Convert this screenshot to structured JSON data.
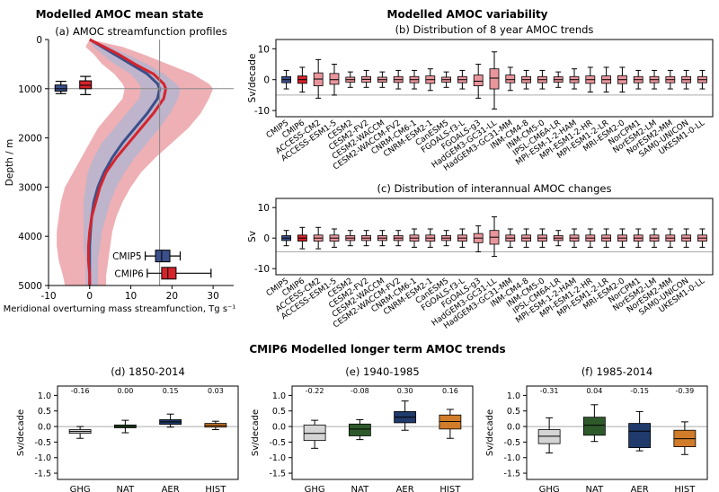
{
  "titles": {
    "left": "Modelled AMOC mean state",
    "right": "Modelled AMOC variability",
    "bottom": "CMIP6 Modelled longer term AMOC trends"
  },
  "colors": {
    "cmip5": "#3b4f8a",
    "cmip6": "#d4242c",
    "pink": "#e8969c",
    "gray": "#cfcfcf",
    "green": "#2e5a2b",
    "navy": "#1f3a6b",
    "orange": "#d07c2a"
  },
  "chart_data": [
    {
      "id": "a",
      "type": "line",
      "title": "(a) AMOC streamfunction profiles",
      "xlabel": "Meridional overturning mass streamfunction, Tg s⁻¹",
      "ylabel": "Depth / m",
      "xlim": [
        -10,
        35
      ],
      "ylim": [
        5000,
        0
      ],
      "xticks": [
        -10,
        0,
        10,
        20,
        30
      ],
      "yticks": [
        0,
        1000,
        2000,
        3000,
        4000,
        5000
      ],
      "reference_lines": {
        "x": 17,
        "y": 1000
      },
      "depth": [
        0,
        150,
        300,
        500,
        700,
        900,
        1000,
        1200,
        1500,
        1800,
        2100,
        2400,
        2700,
        3000,
        3300,
        3600,
        3900,
        4200,
        4500,
        4800,
        5000
      ],
      "series": [
        {
          "name": "CMIP5",
          "mean": [
            0,
            3,
            6,
            10,
            14,
            16.5,
            17,
            16.5,
            14,
            11,
            8,
            5.5,
            3.5,
            2,
            1,
            0.5,
            0.2,
            0,
            0,
            0,
            0
          ],
          "lower": [
            0,
            1,
            3,
            6,
            10,
            12,
            12.5,
            12,
            9,
            6,
            3,
            1,
            -0.5,
            -1,
            -1.5,
            -1.5,
            -1.5,
            -1.5,
            -1,
            -1,
            -1
          ],
          "upper": [
            0,
            5,
            9,
            14,
            18,
            21,
            22,
            21.5,
            19.5,
            17,
            14,
            11,
            8.5,
            6.5,
            5,
            4,
            3,
            2.5,
            2,
            2,
            2
          ]
        },
        {
          "name": "CMIP6",
          "mean": [
            0,
            3.5,
            7,
            11,
            15.5,
            18,
            18.5,
            18,
            15.5,
            12.5,
            9.5,
            6.5,
            4,
            2.5,
            1.5,
            0.5,
            0,
            -0.3,
            -0.3,
            0,
            0
          ],
          "lower": [
            0,
            -1,
            1,
            3,
            6,
            8,
            8.5,
            8,
            5,
            2,
            0,
            -2,
            -4,
            -6,
            -7,
            -7.5,
            -8,
            -8,
            -7.5,
            -6.5,
            -6
          ],
          "upper": [
            0,
            8,
            13,
            19,
            25,
            29,
            30,
            29,
            27,
            24,
            20,
            16,
            12.5,
            10,
            8,
            6.5,
            5.5,
            5,
            4.5,
            4,
            4
          ]
        }
      ],
      "boxes": [
        {
          "name": "CMIP5",
          "axis": "x",
          "position": 4400,
          "whisker": [
            13.5,
            22
          ],
          "q": [
            16,
            19.5
          ],
          "median": 17.5
        },
        {
          "name": "CMIP6",
          "axis": "x",
          "position": 4750,
          "whisker": [
            14,
            29.5
          ],
          "q": [
            17.5,
            21
          ],
          "median": 19
        },
        {
          "name": "CMIP5",
          "axis": "y",
          "position": -7,
          "whisker": [
            850,
            1100
          ],
          "q": [
            925,
            1050
          ],
          "median": 1000
        },
        {
          "name": "CMIP6",
          "axis": "y",
          "position": -1,
          "whisker": [
            750,
            1120
          ],
          "q": [
            840,
            1000
          ],
          "median": 930
        }
      ]
    },
    {
      "id": "b",
      "type": "box",
      "title": "(b) Distribution of 8 year AMOC trends",
      "ylabel": "Sv/decade",
      "ylim": [
        -12,
        13
      ],
      "yticks": [
        -10,
        0,
        10
      ],
      "reference_line": -5,
      "categories": [
        "CMIP5",
        "CMIP6",
        "ACCESS-CM2",
        "ACCESS-ESM1-5",
        "CESM2",
        "CESM2-FV2",
        "CESM2-WACCM",
        "CESM2-WACCM-FV2",
        "CNRM-CM6-1",
        "CNRM-ESM2-1",
        "CanESM5",
        "FGOALS-f3-L",
        "FGOALS-g3",
        "HadGEM3-GC31-LL",
        "HadGEM3-GC31-MM",
        "INM-CM4-8",
        "INM-CM5-0",
        "IPSL-CM6A-LR",
        "MPI-ESM-1-2-HAM",
        "MPI-ESM1-2-HR",
        "MPI-ESM1-2-LR",
        "MRI-ESM2-0",
        "NorCPM1",
        "NorESM2-LM",
        "NorESM2-MM",
        "SAM0-UNICON",
        "UKESM1-0-LL"
      ],
      "boxes": [
        {
          "q1": -1,
          "median": 0,
          "q3": 1,
          "whisker": [
            -3,
            3
          ]
        },
        {
          "q1": -1.2,
          "median": 0,
          "q3": 1.2,
          "whisker": [
            -4,
            4
          ]
        },
        {
          "q1": -2,
          "median": 0.2,
          "q3": 2.2,
          "whisker": [
            -6,
            6.5
          ]
        },
        {
          "q1": -1.5,
          "median": 0,
          "q3": 2,
          "whisker": [
            -5,
            5
          ]
        },
        {
          "q1": -0.8,
          "median": 0,
          "q3": 0.8,
          "whisker": [
            -2.5,
            2.5
          ]
        },
        {
          "q1": -0.8,
          "median": 0.1,
          "q3": 1,
          "whisker": [
            -2.5,
            3
          ]
        },
        {
          "q1": -0.8,
          "median": 0,
          "q3": 0.8,
          "whisker": [
            -2.5,
            2.5
          ]
        },
        {
          "q1": -0.9,
          "median": 0,
          "q3": 1,
          "whisker": [
            -3,
            3
          ]
        },
        {
          "q1": -1,
          "median": 0,
          "q3": 1,
          "whisker": [
            -3,
            3
          ]
        },
        {
          "q1": -1.2,
          "median": 0,
          "q3": 1.2,
          "whisker": [
            -3.5,
            3.5
          ]
        },
        {
          "q1": -0.8,
          "median": 0,
          "q3": 0.8,
          "whisker": [
            -2.5,
            2.5
          ]
        },
        {
          "q1": -1,
          "median": 0,
          "q3": 1,
          "whisker": [
            -3,
            3
          ]
        },
        {
          "q1": -2,
          "median": -0.5,
          "q3": 1.5,
          "whisker": [
            -6,
            5
          ]
        },
        {
          "q1": -3,
          "median": 0.5,
          "q3": 3.5,
          "whisker": [
            -9.5,
            9
          ]
        },
        {
          "q1": -1,
          "median": 0,
          "q3": 1.5,
          "whisker": [
            -3.5,
            4
          ]
        },
        {
          "q1": -1,
          "median": 0,
          "q3": 1,
          "whisker": [
            -3,
            3
          ]
        },
        {
          "q1": -1,
          "median": 0,
          "q3": 1,
          "whisker": [
            -3,
            3
          ]
        },
        {
          "q1": -0.8,
          "median": 0,
          "q3": 0.9,
          "whisker": [
            -2.5,
            2.5
          ]
        },
        {
          "q1": -1,
          "median": 0,
          "q3": 1,
          "whisker": [
            -3,
            3.5
          ]
        },
        {
          "q1": -1.2,
          "median": 0,
          "q3": 1.2,
          "whisker": [
            -4,
            4
          ]
        },
        {
          "q1": -1.2,
          "median": 0,
          "q3": 1.2,
          "whisker": [
            -4,
            4
          ]
        },
        {
          "q1": -1.3,
          "median": 0,
          "q3": 1.3,
          "whisker": [
            -4,
            4
          ]
        },
        {
          "q1": -1,
          "median": 0,
          "q3": 1,
          "whisker": [
            -3,
            3
          ]
        },
        {
          "q1": -1,
          "median": 0,
          "q3": 1,
          "whisker": [
            -3,
            3
          ]
        },
        {
          "q1": -1,
          "median": 0,
          "q3": 1,
          "whisker": [
            -3,
            3
          ]
        },
        {
          "q1": -1,
          "median": 0,
          "q3": 1,
          "whisker": [
            -3,
            3
          ]
        },
        {
          "q1": -1,
          "median": 0,
          "q3": 1,
          "whisker": [
            -3,
            3
          ]
        }
      ]
    },
    {
      "id": "c",
      "type": "box",
      "title": "(c) Distribution of interannual AMOC changes",
      "ylabel": "Sv",
      "ylim": [
        -12,
        13
      ],
      "yticks": [
        -10,
        0,
        10
      ],
      "reference_line": -4.5,
      "categories": [
        "CMIP5",
        "CMIP6",
        "ACCESS-CM2",
        "ACCESS-ESM1-5",
        "CESM2",
        "CESM2-FV2",
        "CESM2-WACCM",
        "CESM2-WACCM-FV2",
        "CNRM-CM6-1",
        "CNRM-ESM2-1",
        "CanESM5",
        "FGOALS-f3-L",
        "FGOALS-g3",
        "HadGEM3-GC31-LL",
        "HadGEM3-GC31-MM",
        "INM-CM4-8",
        "INM-CM5-0",
        "IPSL-CM6A-LR",
        "MPI-ESM-1-2-HAM",
        "MPI-ESM1-2-HR",
        "MPI-ESM1-2-LR",
        "MRI-ESM2-0",
        "NorCPM1",
        "NorESM2-LM",
        "NorESM2-MM",
        "SAM0-UNICON",
        "UKESM1-0-LL"
      ],
      "boxes": [
        {
          "q1": -0.8,
          "median": 0,
          "q3": 0.8,
          "whisker": [
            -2.5,
            2.5
          ]
        },
        {
          "q1": -1,
          "median": 0,
          "q3": 1,
          "whisker": [
            -3.5,
            3.5
          ]
        },
        {
          "q1": -1,
          "median": 0,
          "q3": 1,
          "whisker": [
            -3.5,
            3.5
          ]
        },
        {
          "q1": -1,
          "median": 0,
          "q3": 1,
          "whisker": [
            -3,
            3
          ]
        },
        {
          "q1": -0.8,
          "median": 0,
          "q3": 0.8,
          "whisker": [
            -2.5,
            2.5
          ]
        },
        {
          "q1": -0.8,
          "median": 0,
          "q3": 0.8,
          "whisker": [
            -2.5,
            2.5
          ]
        },
        {
          "q1": -0.8,
          "median": 0,
          "q3": 0.8,
          "whisker": [
            -2.5,
            2.5
          ]
        },
        {
          "q1": -0.8,
          "median": 0,
          "q3": 0.8,
          "whisker": [
            -2.5,
            2.5
          ]
        },
        {
          "q1": -1,
          "median": 0,
          "q3": 1,
          "whisker": [
            -3,
            3
          ]
        },
        {
          "q1": -1,
          "median": 0,
          "q3": 1,
          "whisker": [
            -3,
            3
          ]
        },
        {
          "q1": -0.8,
          "median": 0,
          "q3": 0.8,
          "whisker": [
            -2.5,
            2.5
          ]
        },
        {
          "q1": -1,
          "median": 0,
          "q3": 1,
          "whisker": [
            -3,
            3
          ]
        },
        {
          "q1": -1.5,
          "median": 0,
          "q3": 1.5,
          "whisker": [
            -4.5,
            4
          ]
        },
        {
          "q1": -2,
          "median": 0.3,
          "q3": 2.5,
          "whisker": [
            -6,
            7
          ]
        },
        {
          "q1": -1,
          "median": 0,
          "q3": 1,
          "whisker": [
            -3,
            3
          ]
        },
        {
          "q1": -1,
          "median": 0,
          "q3": 1,
          "whisker": [
            -3,
            3
          ]
        },
        {
          "q1": -1,
          "median": 0,
          "q3": 1,
          "whisker": [
            -3,
            3
          ]
        },
        {
          "q1": -0.8,
          "median": 0,
          "q3": 0.8,
          "whisker": [
            -2.5,
            2.5
          ]
        },
        {
          "q1": -1,
          "median": 0,
          "q3": 1,
          "whisker": [
            -3,
            3
          ]
        },
        {
          "q1": -1,
          "median": 0,
          "q3": 1,
          "whisker": [
            -3,
            3
          ]
        },
        {
          "q1": -1,
          "median": 0,
          "q3": 1,
          "whisker": [
            -3,
            3
          ]
        },
        {
          "q1": -1,
          "median": 0,
          "q3": 1,
          "whisker": [
            -3,
            3
          ]
        },
        {
          "q1": -1,
          "median": 0,
          "q3": 1,
          "whisker": [
            -3,
            3
          ]
        },
        {
          "q1": -1,
          "median": 0,
          "q3": 1,
          "whisker": [
            -3,
            3
          ]
        },
        {
          "q1": -1,
          "median": 0,
          "q3": 1,
          "whisker": [
            -3,
            3
          ]
        },
        {
          "q1": -1,
          "median": 0,
          "q3": 1,
          "whisker": [
            -3,
            3
          ]
        },
        {
          "q1": -1,
          "median": 0,
          "q3": 1,
          "whisker": [
            -3,
            3
          ]
        }
      ]
    },
    {
      "id": "d",
      "type": "box",
      "title": "(d) 1850-2014",
      "ylabel": "Sv/decade",
      "ylim": [
        -1.7,
        1.3
      ],
      "yticks": [
        -1.5,
        -1.0,
        -0.5,
        0.0,
        0.5,
        1.0
      ],
      "categories": [
        "GHG",
        "NAT",
        "AER",
        "HIST"
      ],
      "annotations": [
        "-0.16",
        "0.00",
        "0.15",
        "0.03"
      ],
      "boxes": [
        {
          "q1": -0.22,
          "median": -0.16,
          "q3": -0.1,
          "whisker": [
            -0.38,
            0.0
          ],
          "color": "#d4d4d4"
        },
        {
          "q1": -0.04,
          "median": 0.0,
          "q3": 0.05,
          "whisker": [
            -0.2,
            0.2
          ],
          "color": "#2e5a2b"
        },
        {
          "q1": 0.07,
          "median": 0.15,
          "q3": 0.22,
          "whisker": [
            -0.02,
            0.4
          ],
          "color": "#1f3a6b"
        },
        {
          "q1": -0.02,
          "median": 0.03,
          "q3": 0.1,
          "whisker": [
            -0.1,
            0.17
          ],
          "color": "#d07c2a"
        }
      ]
    },
    {
      "id": "e",
      "type": "box",
      "title": "(e) 1940-1985",
      "ylabel": "Sv/decade",
      "ylim": [
        -1.7,
        1.3
      ],
      "yticks": [
        -1.5,
        -1.0,
        -0.5,
        0.0,
        0.5,
        1.0
      ],
      "categories": [
        "GHG",
        "NAT",
        "AER",
        "HIST"
      ],
      "annotations": [
        "-0.22",
        "-0.08",
        "0.30",
        "0.16"
      ],
      "boxes": [
        {
          "q1": -0.45,
          "median": -0.22,
          "q3": 0.05,
          "whisker": [
            -0.7,
            0.2
          ],
          "color": "#d4d4d4"
        },
        {
          "q1": -0.3,
          "median": -0.08,
          "q3": 0.08,
          "whisker": [
            -0.42,
            0.22
          ],
          "color": "#2e5a2b"
        },
        {
          "q1": 0.12,
          "median": 0.3,
          "q3": 0.48,
          "whisker": [
            -0.12,
            0.82
          ],
          "color": "#1f3a6b"
        },
        {
          "q1": -0.08,
          "median": 0.16,
          "q3": 0.37,
          "whisker": [
            -0.38,
            0.55
          ],
          "color": "#d07c2a"
        }
      ]
    },
    {
      "id": "f",
      "type": "box",
      "title": "(f) 1985-2014",
      "ylabel": "Sv/decade",
      "ylim": [
        -1.7,
        1.3
      ],
      "yticks": [
        -1.5,
        -1.0,
        -0.5,
        0.0,
        0.5,
        1.0
      ],
      "categories": [
        "GHG",
        "NAT",
        "AER",
        "HIST"
      ],
      "annotations": [
        "-0.31",
        "0.04",
        "-0.15",
        "-0.39"
      ],
      "boxes": [
        {
          "q1": -0.55,
          "median": -0.31,
          "q3": -0.1,
          "whisker": [
            -0.85,
            0.28
          ],
          "color": "#d4d4d4"
        },
        {
          "q1": -0.28,
          "median": 0.04,
          "q3": 0.3,
          "whisker": [
            -0.48,
            0.7
          ],
          "color": "#2e5a2b"
        },
        {
          "q1": -0.68,
          "median": -0.15,
          "q3": 0.1,
          "whisker": [
            -0.78,
            0.48
          ],
          "color": "#1f3a6b"
        },
        {
          "q1": -0.65,
          "median": -0.39,
          "q3": -0.12,
          "whisker": [
            -0.9,
            0.15
          ],
          "color": "#d07c2a"
        }
      ]
    }
  ]
}
